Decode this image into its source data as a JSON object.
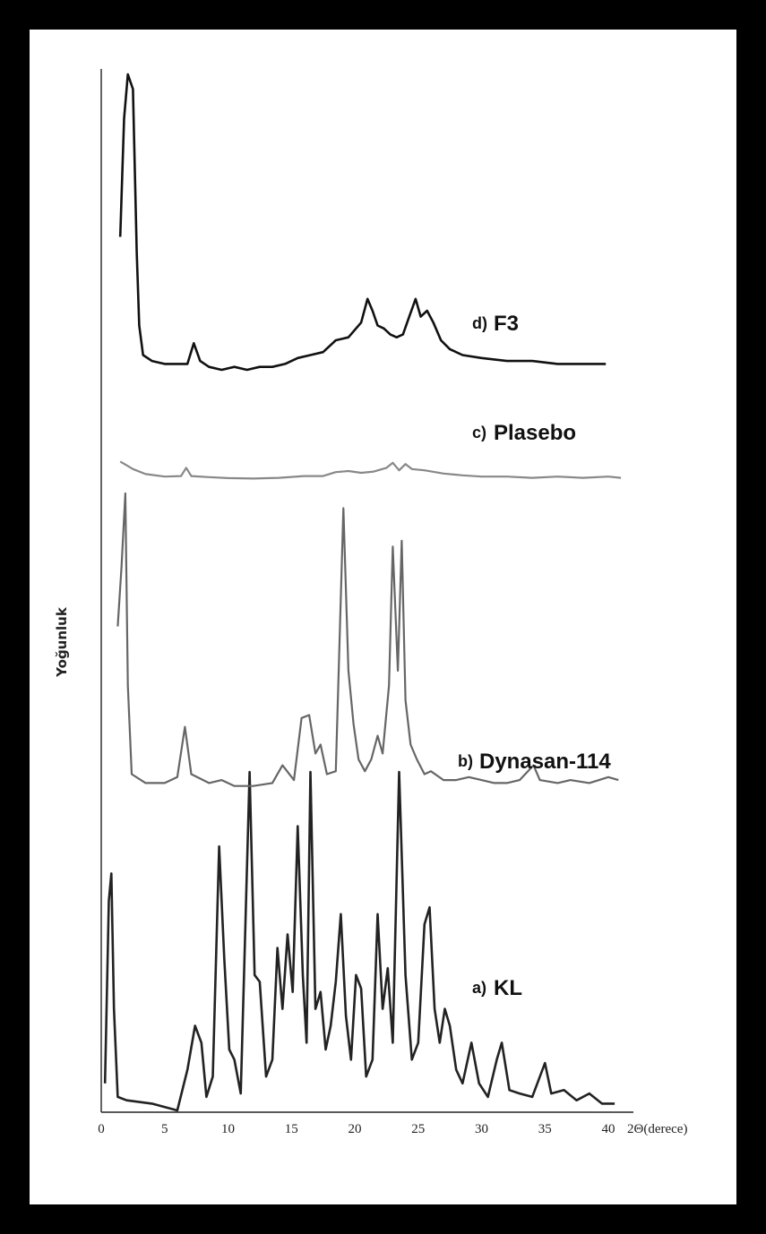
{
  "chart_data": {
    "type": "line",
    "xlabel": "2Θ(derece)",
    "ylabel": "Yoğunluk",
    "xlim": [
      0,
      41
    ],
    "x_ticks": [
      "0",
      "5",
      "10",
      "15",
      "20",
      "25",
      "30",
      "35",
      "40"
    ],
    "y_ticks": [],
    "grid": false,
    "legend": "inline labels at right of each trace",
    "series": [
      {
        "prefix": "a)",
        "name": "KL",
        "color": "#222222",
        "points": [
          [
            0.3,
            0.08
          ],
          [
            0.6,
            0.62
          ],
          [
            0.8,
            0.7
          ],
          [
            1.0,
            0.3
          ],
          [
            1.3,
            0.04
          ],
          [
            2,
            0.03
          ],
          [
            4,
            0.02
          ],
          [
            6,
            0.0
          ],
          [
            6.8,
            0.12
          ],
          [
            7.4,
            0.25
          ],
          [
            7.9,
            0.2
          ],
          [
            8.3,
            0.04
          ],
          [
            8.8,
            0.1
          ],
          [
            9.3,
            0.78
          ],
          [
            9.7,
            0.45
          ],
          [
            10.1,
            0.18
          ],
          [
            10.5,
            0.15
          ],
          [
            11.0,
            0.05
          ],
          [
            11.3,
            0.45
          ],
          [
            11.7,
            1.0
          ],
          [
            12.1,
            0.4
          ],
          [
            12.5,
            0.38
          ],
          [
            13.0,
            0.1
          ],
          [
            13.5,
            0.15
          ],
          [
            13.9,
            0.48
          ],
          [
            14.3,
            0.3
          ],
          [
            14.7,
            0.52
          ],
          [
            15.1,
            0.35
          ],
          [
            15.5,
            0.84
          ],
          [
            15.9,
            0.4
          ],
          [
            16.2,
            0.2
          ],
          [
            16.5,
            1.0
          ],
          [
            16.9,
            0.3
          ],
          [
            17.3,
            0.35
          ],
          [
            17.7,
            0.18
          ],
          [
            18.1,
            0.25
          ],
          [
            18.5,
            0.38
          ],
          [
            18.9,
            0.58
          ],
          [
            19.3,
            0.28
          ],
          [
            19.7,
            0.15
          ],
          [
            20.1,
            0.4
          ],
          [
            20.5,
            0.36
          ],
          [
            20.9,
            0.1
          ],
          [
            21.4,
            0.15
          ],
          [
            21.8,
            0.58
          ],
          [
            22.2,
            0.3
          ],
          [
            22.6,
            0.42
          ],
          [
            23.0,
            0.2
          ],
          [
            23.5,
            1.0
          ],
          [
            24.0,
            0.4
          ],
          [
            24.5,
            0.15
          ],
          [
            25.0,
            0.2
          ],
          [
            25.5,
            0.55
          ],
          [
            25.9,
            0.6
          ],
          [
            26.3,
            0.3
          ],
          [
            26.7,
            0.2
          ],
          [
            27.1,
            0.3
          ],
          [
            27.5,
            0.25
          ],
          [
            28.0,
            0.12
          ],
          [
            28.5,
            0.08
          ],
          [
            29.2,
            0.2
          ],
          [
            29.8,
            0.08
          ],
          [
            30.5,
            0.04
          ],
          [
            31.2,
            0.15
          ],
          [
            31.6,
            0.2
          ],
          [
            32.2,
            0.06
          ],
          [
            33,
            0.05
          ],
          [
            34,
            0.04
          ],
          [
            35,
            0.14
          ],
          [
            35.5,
            0.05
          ],
          [
            36.5,
            0.06
          ],
          [
            37.5,
            0.03
          ],
          [
            38.5,
            0.05
          ],
          [
            39.5,
            0.02
          ],
          [
            40.5,
            0.02
          ]
        ]
      },
      {
        "prefix": "b)",
        "name": "Dynasan-114",
        "color": "#666666",
        "points": [
          [
            1.3,
            0.55
          ],
          [
            1.6,
            0.75
          ],
          [
            1.9,
            1.0
          ],
          [
            2.1,
            0.35
          ],
          [
            2.4,
            0.05
          ],
          [
            3.5,
            0.02
          ],
          [
            5,
            0.02
          ],
          [
            6.0,
            0.04
          ],
          [
            6.6,
            0.21
          ],
          [
            7.1,
            0.05
          ],
          [
            8.5,
            0.02
          ],
          [
            9.5,
            0.03
          ],
          [
            10.5,
            0.01
          ],
          [
            12,
            0.01
          ],
          [
            13.5,
            0.02
          ],
          [
            14.3,
            0.08
          ],
          [
            15.2,
            0.03
          ],
          [
            15.8,
            0.24
          ],
          [
            16.4,
            0.25
          ],
          [
            16.9,
            0.12
          ],
          [
            17.3,
            0.15
          ],
          [
            17.8,
            0.05
          ],
          [
            18.5,
            0.06
          ],
          [
            19.1,
            0.95
          ],
          [
            19.5,
            0.4
          ],
          [
            19.9,
            0.22
          ],
          [
            20.3,
            0.1
          ],
          [
            20.8,
            0.06
          ],
          [
            21.3,
            0.1
          ],
          [
            21.8,
            0.18
          ],
          [
            22.2,
            0.12
          ],
          [
            22.7,
            0.35
          ],
          [
            23.0,
            0.82
          ],
          [
            23.4,
            0.4
          ],
          [
            23.7,
            0.84
          ],
          [
            24.0,
            0.3
          ],
          [
            24.4,
            0.15
          ],
          [
            24.9,
            0.1
          ],
          [
            25.5,
            0.05
          ],
          [
            26,
            0.06
          ],
          [
            27,
            0.03
          ],
          [
            28,
            0.03
          ],
          [
            29,
            0.04
          ],
          [
            30,
            0.03
          ],
          [
            31,
            0.02
          ],
          [
            32,
            0.02
          ],
          [
            33,
            0.03
          ],
          [
            34.1,
            0.08
          ],
          [
            34.6,
            0.03
          ],
          [
            36,
            0.02
          ],
          [
            37,
            0.03
          ],
          [
            38.5,
            0.02
          ],
          [
            40,
            0.04
          ],
          [
            40.8,
            0.03
          ]
        ]
      },
      {
        "prefix": "c)",
        "name": "Plasebo",
        "color": "#888888",
        "points": [
          [
            1.5,
            0.7
          ],
          [
            2.0,
            0.55
          ],
          [
            2.5,
            0.4
          ],
          [
            3.5,
            0.2
          ],
          [
            5,
            0.1
          ],
          [
            6.3,
            0.12
          ],
          [
            6.7,
            0.45
          ],
          [
            7.1,
            0.12
          ],
          [
            8.5,
            0.08
          ],
          [
            10,
            0.04
          ],
          [
            12,
            0.02
          ],
          [
            14,
            0.05
          ],
          [
            16,
            0.12
          ],
          [
            17.5,
            0.12
          ],
          [
            18.5,
            0.28
          ],
          [
            19.5,
            0.32
          ],
          [
            20.5,
            0.25
          ],
          [
            21.5,
            0.3
          ],
          [
            22.5,
            0.45
          ],
          [
            23.0,
            0.65
          ],
          [
            23.5,
            0.35
          ],
          [
            24.0,
            0.6
          ],
          [
            24.5,
            0.4
          ],
          [
            25.5,
            0.35
          ],
          [
            27,
            0.22
          ],
          [
            28.5,
            0.15
          ],
          [
            30,
            0.1
          ],
          [
            32,
            0.1
          ],
          [
            34,
            0.05
          ],
          [
            36,
            0.1
          ],
          [
            38,
            0.05
          ],
          [
            40,
            0.1
          ],
          [
            41,
            0.05
          ]
        ]
      },
      {
        "prefix": "d)",
        "name": "F3",
        "color": "#111111",
        "points": [
          [
            1.5,
            0.45
          ],
          [
            1.8,
            0.85
          ],
          [
            2.1,
            1.0
          ],
          [
            2.5,
            0.95
          ],
          [
            2.8,
            0.4
          ],
          [
            3.0,
            0.15
          ],
          [
            3.3,
            0.05
          ],
          [
            4,
            0.03
          ],
          [
            5,
            0.02
          ],
          [
            6,
            0.02
          ],
          [
            6.8,
            0.02
          ],
          [
            7.3,
            0.09
          ],
          [
            7.8,
            0.03
          ],
          [
            8.5,
            0.01
          ],
          [
            9.5,
            0.0
          ],
          [
            10.5,
            0.01
          ],
          [
            11.5,
            0.0
          ],
          [
            12.5,
            0.01
          ],
          [
            13.5,
            0.01
          ],
          [
            14.5,
            0.02
          ],
          [
            15.5,
            0.04
          ],
          [
            16.5,
            0.05
          ],
          [
            17.5,
            0.06
          ],
          [
            18.5,
            0.1
          ],
          [
            19.5,
            0.11
          ],
          [
            20.5,
            0.16
          ],
          [
            21.0,
            0.24
          ],
          [
            21.4,
            0.2
          ],
          [
            21.8,
            0.15
          ],
          [
            22.3,
            0.14
          ],
          [
            22.8,
            0.12
          ],
          [
            23.3,
            0.11
          ],
          [
            23.8,
            0.12
          ],
          [
            24.3,
            0.18
          ],
          [
            24.8,
            0.24
          ],
          [
            25.2,
            0.18
          ],
          [
            25.7,
            0.2
          ],
          [
            26.2,
            0.16
          ],
          [
            26.8,
            0.1
          ],
          [
            27.5,
            0.07
          ],
          [
            28.5,
            0.05
          ],
          [
            30,
            0.04
          ],
          [
            32,
            0.03
          ],
          [
            34,
            0.03
          ],
          [
            36,
            0.02
          ],
          [
            38,
            0.02
          ],
          [
            39.8,
            0.02
          ]
        ]
      }
    ]
  }
}
